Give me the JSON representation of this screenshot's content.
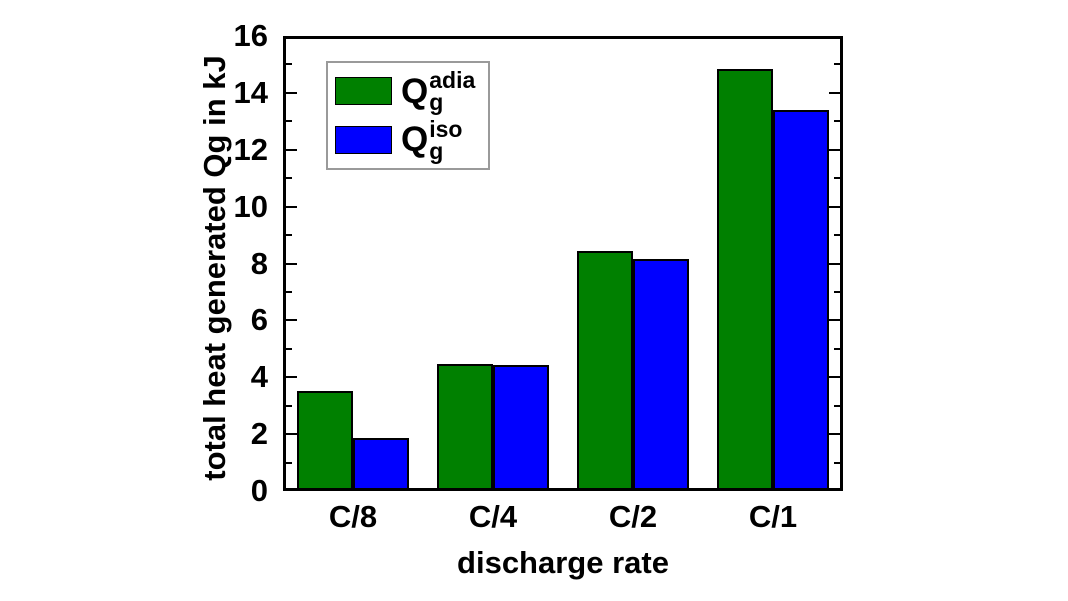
{
  "chart_data": {
    "type": "bar",
    "title": "",
    "xlabel": "discharge rate",
    "ylabel": "total heat generated Qg in kJ",
    "categories": [
      "C/8",
      "C/4",
      "C/2",
      "C/1"
    ],
    "series": [
      {
        "key": "adia",
        "name": "Qg^adia (adiabatic)",
        "label_base": "Q",
        "label_sup": "adia",
        "label_sub": "g",
        "color": "#008000",
        "values": [
          3.5,
          4.47,
          8.45,
          14.85
        ]
      },
      {
        "key": "iso",
        "name": "Qg^iso (isothermal)",
        "label_base": "Q",
        "label_sup": "iso",
        "label_sub": "g",
        "color": "#0000ff",
        "values": [
          1.85,
          4.44,
          8.15,
          13.4
        ]
      }
    ],
    "ylim": [
      0,
      16
    ],
    "y_ticks": [
      0,
      2,
      4,
      6,
      8,
      10,
      12,
      14,
      16
    ],
    "y_major_step": 2,
    "y_minor_step": 1,
    "grid": false,
    "legend_position": "upper-left-inside",
    "bar_edge_color": "#000000",
    "axis_color": "#000000",
    "background_color": "#ffffff"
  }
}
